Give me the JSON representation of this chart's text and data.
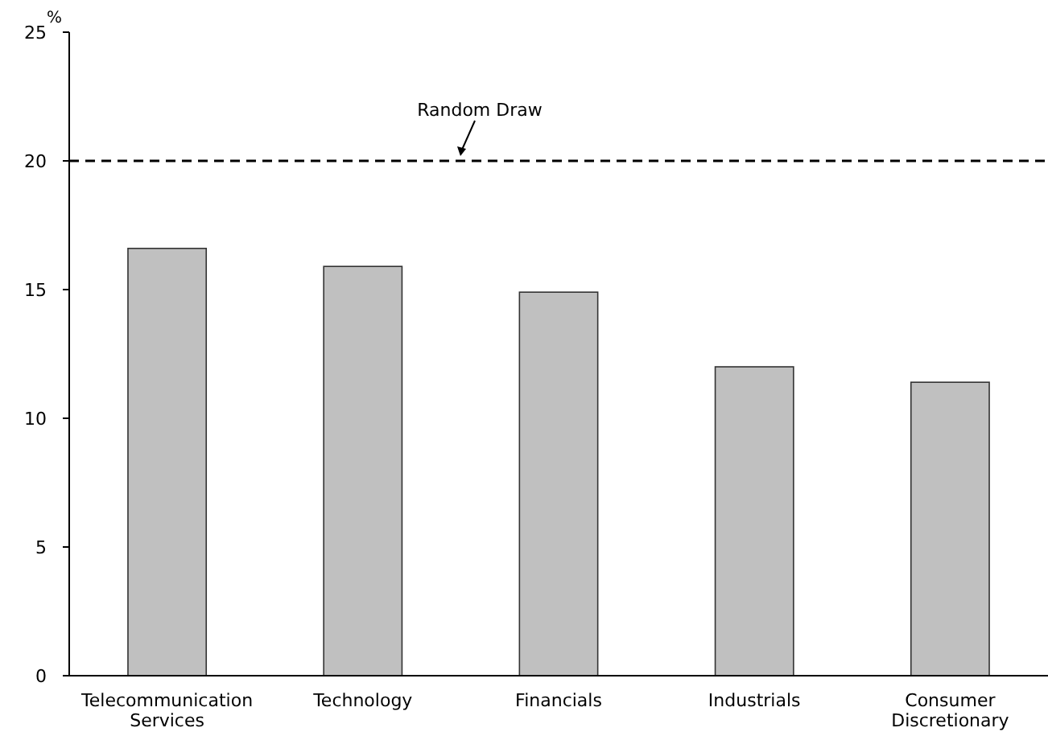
{
  "chart_data": {
    "type": "bar",
    "ylabel": "%",
    "categories": [
      "Telecommunication Services",
      "Technology",
      "Financials",
      "Industrials",
      "Consumer Discretionary"
    ],
    "values": [
      16.6,
      15.9,
      14.9,
      12.0,
      11.4
    ],
    "color": "#c0c0c0",
    "ylim": [
      0,
      25
    ],
    "yticks": [
      0,
      5,
      10,
      15,
      20,
      25
    ],
    "grid": false,
    "ref_lines": [
      {
        "axis": "y",
        "value": 20,
        "label": "Random Draw",
        "line_style": "dashed",
        "color": "#000000"
      }
    ]
  }
}
